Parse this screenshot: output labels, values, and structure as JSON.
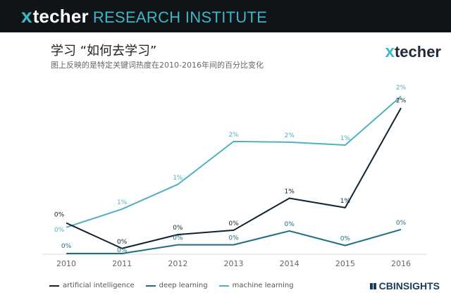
{
  "header": {
    "brand_x": "x",
    "brand_name": "techer",
    "brand_sub": "RESEARCH INSTITUTE"
  },
  "logo": {
    "x": "x",
    "name": "techer"
  },
  "footer": {
    "source_brand": "CBINSIGHTS"
  },
  "colors": {
    "header_bg": "#111417",
    "accent": "#3fb6c5",
    "ai": "#10222f",
    "dl": "#1b6f80",
    "ml": "#4fb1be"
  },
  "chart_data": {
    "type": "line",
    "title": "学习 “如何去学习”",
    "subtitle": "图上反映的是特定关键词热度在2010-2016年间的百分比变化",
    "x": [
      "2010",
      "2011",
      "2012",
      "2013",
      "2014",
      "2015",
      "2016"
    ],
    "ylim": [
      0,
      2.4
    ],
    "grid": false,
    "legend_position": "bottom-left",
    "series": [
      {
        "name": "artificial intelligence",
        "color": "#10222f",
        "values": [
          0.42,
          0.07,
          0.26,
          0.32,
          0.76,
          0.63,
          2.0
        ],
        "labels": [
          "0%",
          "0%",
          "0%",
          "0%",
          "1%",
          "1%",
          "2%"
        ]
      },
      {
        "name": "deep learning",
        "color": "#1b6f80",
        "values": [
          0.0,
          0.0,
          0.12,
          0.12,
          0.31,
          0.11,
          0.33
        ],
        "labels": [
          "0%",
          "0%",
          "0%",
          "0%",
          "0%",
          "0%",
          "0%"
        ]
      },
      {
        "name": "machine learning",
        "color": "#4fb1be",
        "values": [
          0.36,
          0.61,
          0.95,
          1.54,
          1.53,
          1.49,
          2.16
        ],
        "labels": [
          "0%",
          "1%",
          "1%",
          "2%",
          "2%",
          "1%",
          "2%"
        ]
      }
    ]
  }
}
